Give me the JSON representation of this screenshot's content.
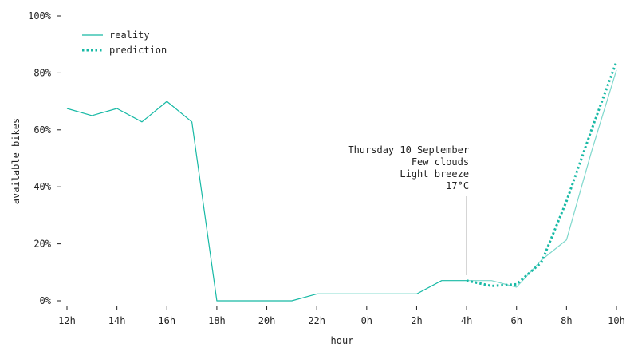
{
  "chart_data": {
    "type": "line",
    "xlabel": "hour",
    "ylabel": "available bikes",
    "ylim": [
      0,
      100
    ],
    "y_ticks": [
      "0%",
      "20%",
      "40%",
      "60%",
      "80%",
      "100%"
    ],
    "x_ticks": [
      "12h",
      "14h",
      "16h",
      "18h",
      "20h",
      "22h",
      "0h",
      "2h",
      "4h",
      "6h",
      "8h",
      "10h"
    ],
    "grid": false,
    "legend_position": "top-left",
    "colors": {
      "reality": "#17b9a5",
      "reality_after_now": "#7fd8cc",
      "prediction": "#17b9a5"
    },
    "series": [
      {
        "name": "reality",
        "style": "solid",
        "hours": [
          "12h",
          "13h",
          "14h",
          "15h",
          "16h",
          "17h",
          "18h",
          "19h",
          "20h",
          "21h",
          "22h",
          "23h",
          "0h",
          "1h",
          "2h",
          "3h",
          "4h",
          "5h",
          "6h",
          "7h",
          "8h",
          "9h",
          "10h"
        ],
        "values": [
          67.5,
          65,
          67.5,
          62.8,
          70,
          62.8,
          0,
          0,
          0,
          0,
          2.4,
          2.4,
          2.4,
          2.4,
          2.4,
          7.1,
          7.1,
          7.1,
          4.8,
          14.3,
          21.4,
          52.4,
          81
        ]
      },
      {
        "name": "prediction",
        "style": "dotted",
        "hours": [
          "4h",
          "5h",
          "6h",
          "7h",
          "8h",
          "9h",
          "10h"
        ],
        "values": [
          7.1,
          5.2,
          5.8,
          13.5,
          35,
          60,
          84
        ]
      }
    ],
    "annotation": {
      "at_hour": "4h",
      "lines": [
        "Thursday 10 September",
        "Few clouds",
        "Light breeze",
        "17°C"
      ]
    }
  }
}
